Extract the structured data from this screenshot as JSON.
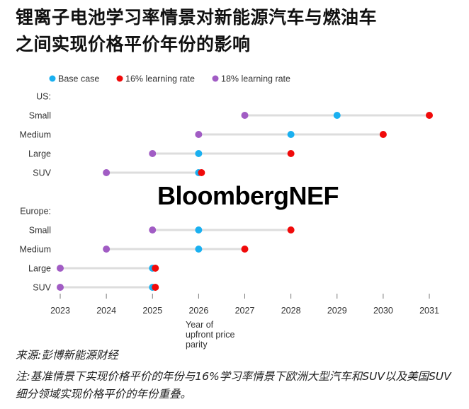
{
  "title_lines": [
    "锂离子电池学习率情景对新能源汽车与燃油车",
    "之间实现价格平价年份的影响"
  ],
  "watermark": "BloombergNEF",
  "source": "来源:彭博新能源财经",
  "note": "注:基准情景下实现价格平价的年份与16%学习率情景下欧洲大型汽车和SUV以及美国SUV细分领域实现价格平价的年份重叠。",
  "chart_data": {
    "type": "dot-plot",
    "xlabel": "Year of upfront price parity",
    "xlim": [
      2023,
      2031
    ],
    "xticks": [
      2023,
      2024,
      2025,
      2026,
      2027,
      2028,
      2029,
      2030,
      2031
    ],
    "grid": false,
    "legend_position": "top-left",
    "series": [
      {
        "name": "Base case",
        "color": "#1ab0f0"
      },
      {
        "name": "16% learning rate",
        "color": "#f00a0a"
      },
      {
        "name": "18% learning rate",
        "color": "#a15cc4"
      }
    ],
    "groups": [
      {
        "label": "US:",
        "rows": [
          {
            "label": "Small",
            "values": {
              "Base case": 2029,
              "16% learning rate": 2031,
              "18% learning rate": 2027
            }
          },
          {
            "label": "Medium",
            "values": {
              "Base case": 2028,
              "16% learning rate": 2030,
              "18% learning rate": 2026
            }
          },
          {
            "label": "Large",
            "values": {
              "Base case": 2026,
              "16% learning rate": 2028,
              "18% learning rate": 2025
            }
          },
          {
            "label": "SUV",
            "values": {
              "Base case": 2026,
              "16% learning rate": 2026,
              "18% learning rate": 2024
            }
          }
        ]
      },
      {
        "label": "Europe:",
        "rows": [
          {
            "label": "Small",
            "values": {
              "Base case": 2026,
              "16% learning rate": 2028,
              "18% learning rate": 2025
            }
          },
          {
            "label": "Medium",
            "values": {
              "Base case": 2026,
              "16% learning rate": 2027,
              "18% learning rate": 2024
            }
          },
          {
            "label": "Large",
            "values": {
              "Base case": 2025,
              "16% learning rate": 2025,
              "18% learning rate": 2023
            }
          },
          {
            "label": "SUV",
            "values": {
              "Base case": 2025,
              "16% learning rate": 2025,
              "18% learning rate": 2023
            }
          }
        ]
      }
    ]
  }
}
